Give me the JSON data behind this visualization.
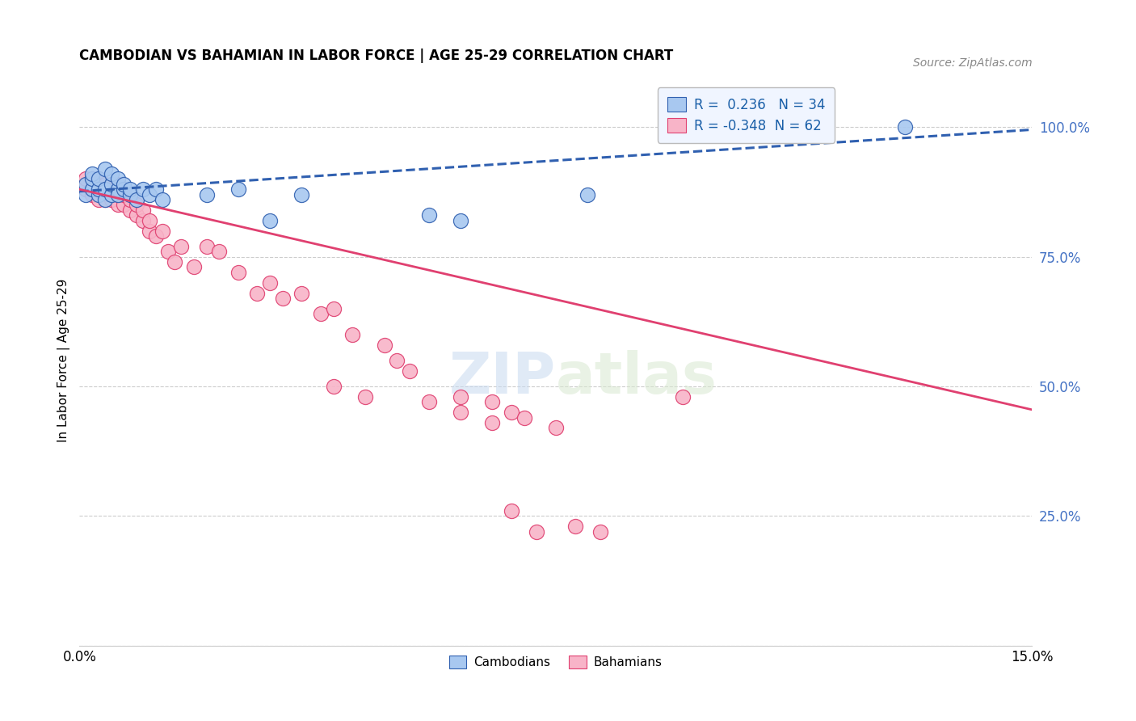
{
  "title": "CAMBODIAN VS BAHAMIAN IN LABOR FORCE | AGE 25-29 CORRELATION CHART",
  "source": "Source: ZipAtlas.com",
  "ylabel": "In Labor Force | Age 25-29",
  "xlim": [
    0.0,
    0.15
  ],
  "ylim": [
    0.0,
    1.1
  ],
  "xticks": [
    0.0,
    0.03,
    0.06,
    0.09,
    0.12,
    0.15
  ],
  "xticklabels": [
    "0.0%",
    "",
    "",
    "",
    "",
    "15.0%"
  ],
  "yticks_right": [
    0.0,
    0.25,
    0.5,
    0.75,
    1.0
  ],
  "yticklabels_right": [
    "",
    "25.0%",
    "50.0%",
    "75.0%",
    "100.0%"
  ],
  "cambodian_color": "#a8c8f0",
  "bahamian_color": "#f8b4c8",
  "trend_cambodian_color": "#3060b0",
  "trend_bahamian_color": "#e04070",
  "r_cambodian": 0.236,
  "n_cambodian": 34,
  "r_bahamian": -0.348,
  "n_bahamian": 62,
  "cambodian_x": [
    0.001,
    0.001,
    0.002,
    0.002,
    0.002,
    0.003,
    0.003,
    0.003,
    0.004,
    0.004,
    0.004,
    0.005,
    0.005,
    0.005,
    0.006,
    0.006,
    0.006,
    0.007,
    0.007,
    0.008,
    0.008,
    0.009,
    0.01,
    0.011,
    0.012,
    0.013,
    0.02,
    0.025,
    0.03,
    0.035,
    0.055,
    0.06,
    0.08,
    0.13
  ],
  "cambodian_y": [
    0.87,
    0.89,
    0.88,
    0.9,
    0.91,
    0.87,
    0.88,
    0.9,
    0.86,
    0.88,
    0.92,
    0.87,
    0.89,
    0.91,
    0.88,
    0.9,
    0.87,
    0.88,
    0.89,
    0.87,
    0.88,
    0.86,
    0.88,
    0.87,
    0.88,
    0.86,
    0.87,
    0.88,
    0.82,
    0.87,
    0.83,
    0.82,
    0.87,
    1.0
  ],
  "bahamian_x": [
    0.001,
    0.001,
    0.001,
    0.002,
    0.002,
    0.002,
    0.003,
    0.003,
    0.003,
    0.004,
    0.004,
    0.004,
    0.005,
    0.005,
    0.005,
    0.006,
    0.006,
    0.006,
    0.007,
    0.007,
    0.008,
    0.008,
    0.009,
    0.009,
    0.01,
    0.01,
    0.011,
    0.011,
    0.012,
    0.013,
    0.014,
    0.015,
    0.016,
    0.018,
    0.02,
    0.022,
    0.025,
    0.028,
    0.03,
    0.032,
    0.035,
    0.038,
    0.04,
    0.043,
    0.048,
    0.05,
    0.052,
    0.06,
    0.065,
    0.068,
    0.07,
    0.075,
    0.04,
    0.045,
    0.055,
    0.06,
    0.065,
    0.068,
    0.072,
    0.078,
    0.082,
    0.095
  ],
  "bahamian_y": [
    0.88,
    0.89,
    0.9,
    0.87,
    0.88,
    0.9,
    0.86,
    0.88,
    0.9,
    0.86,
    0.88,
    0.89,
    0.86,
    0.88,
    0.87,
    0.85,
    0.87,
    0.89,
    0.85,
    0.87,
    0.84,
    0.86,
    0.83,
    0.85,
    0.82,
    0.84,
    0.8,
    0.82,
    0.79,
    0.8,
    0.76,
    0.74,
    0.77,
    0.73,
    0.77,
    0.76,
    0.72,
    0.68,
    0.7,
    0.67,
    0.68,
    0.64,
    0.65,
    0.6,
    0.58,
    0.55,
    0.53,
    0.48,
    0.47,
    0.45,
    0.44,
    0.42,
    0.5,
    0.48,
    0.47,
    0.45,
    0.43,
    0.26,
    0.22,
    0.23,
    0.22,
    0.48
  ],
  "watermark_zip": "ZIP",
  "watermark_atlas": "atlas",
  "figsize": [
    14.06,
    8.92
  ],
  "dpi": 100
}
